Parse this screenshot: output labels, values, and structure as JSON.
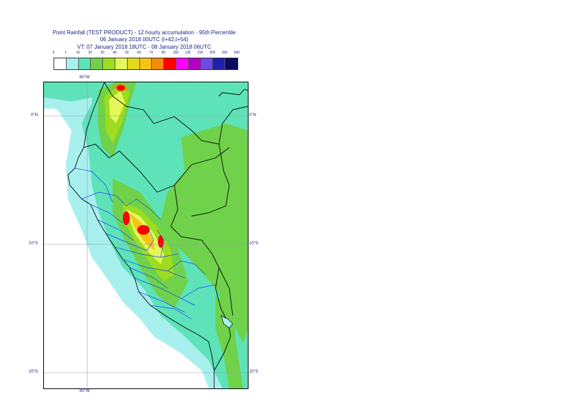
{
  "header": {
    "title_line1": "Point Rainfall (TEST PRODUCT) - 12 hourly accumulation - 95th Percentile",
    "title_line2": "06 January 2018 00UTC (t+42,t+54)",
    "title_line3": "VT: 07 January 2018 18UTC - 08 January 2018 06UTC"
  },
  "legend": {
    "ticks": [
      "0",
      "1",
      "10",
      "20",
      "30",
      "40",
      "50",
      "60",
      "70",
      "80",
      "100",
      "125",
      "150",
      "200",
      "300",
      "500"
    ],
    "colors": [
      "#ffffff",
      "#a8f0ee",
      "#5ee3b8",
      "#6fd24a",
      "#9ddc1e",
      "#e3f85a",
      "#dfdb1c",
      "#f7c416",
      "#f58a0b",
      "#ff0000",
      "#ff00ff",
      "#b000c8",
      "#6e48e8",
      "#2020b0",
      "#0a0a60"
    ]
  },
  "map": {
    "axis_labels": {
      "top_lon": "80°W",
      "bottom_lon": "80°W",
      "lat_0_left": "0°N",
      "lat_0_right": "0°N",
      "lat_10_left": "10°S",
      "lat_10_right": "10°S",
      "lat_20_left": "20°S",
      "lat_20_right": "20°S"
    }
  }
}
